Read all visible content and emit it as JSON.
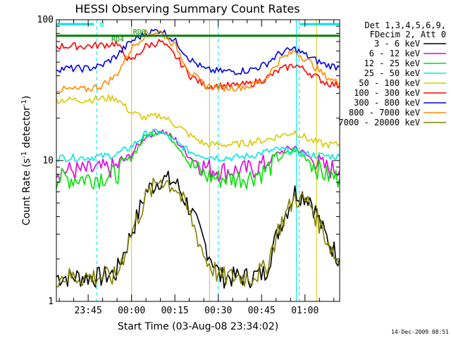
{
  "chart_data": {
    "type": "line",
    "title": "HESSI Observing Summary Count Rates",
    "xlabel": "Start Time (03-Aug-08 23:34:02)",
    "ylabel": "Count Rate (s",
    "ylabel_sup": "-1",
    "ylabel_tail": " detector",
    "ylabel_tail_sup": "-1",
    "ylabel_close": ")",
    "yscale": "log",
    "ylim": [
      1,
      100
    ],
    "y_ticks": [
      "1",
      "10",
      "100"
    ],
    "x_tick_labels": [
      "23:45",
      "00:00",
      "00:15",
      "00:30",
      "00:45",
      "01:00"
    ],
    "x_tick_minutes": [
      11,
      26,
      41,
      56,
      71,
      86
    ],
    "x_range_minutes": [
      0,
      98
    ],
    "legend_header": [
      "Det 1,3,4,5,6,9,",
      "FDecim 2, Att 0"
    ],
    "series": [
      {
        "name": "3 - 6 keV",
        "color": "#000000",
        "values": [
          1.5,
          1.5,
          1.5,
          1.5,
          1.6,
          3.0,
          6.0,
          7.5,
          7.0,
          4.5,
          2.5,
          1.5,
          1.5,
          1.5,
          1.6,
          3.5,
          6.0,
          5.5,
          3.0,
          2.0
        ]
      },
      {
        "name": "6 - 12 keV",
        "color": "#e100e1",
        "values": [
          8.5,
          8.5,
          8.5,
          8.7,
          9.0,
          11.0,
          15.0,
          16.5,
          14.0,
          10.5,
          9.0,
          8.5,
          8.5,
          8.7,
          9.5,
          11.5,
          12.5,
          10.5,
          9.0,
          8.5
        ]
      },
      {
        "name": "12 - 25 keV",
        "color": "#00e100",
        "values": [
          7.5,
          7.5,
          7.5,
          7.7,
          8.0,
          10.5,
          15.0,
          16.5,
          13.5,
          9.5,
          7.8,
          7.5,
          7.5,
          7.7,
          8.5,
          10.5,
          12.0,
          10.0,
          8.0,
          7.5
        ]
      },
      {
        "name": "25 - 50 keV",
        "color": "#00e6e6",
        "values": [
          10.5,
          10.5,
          10.5,
          10.7,
          11.0,
          12.5,
          15.5,
          16.0,
          13.5,
          11.5,
          10.8,
          10.5,
          10.5,
          10.8,
          11.5,
          12.0,
          11.5,
          11.0,
          10.8,
          10.7
        ]
      },
      {
        "name": "50 - 100 keV",
        "color": "#dcc800",
        "values": [
          27,
          27,
          27,
          27.5,
          28,
          22,
          20,
          21,
          18,
          15,
          13,
          13,
          13,
          13.5,
          14,
          15,
          16,
          14,
          13,
          13
        ]
      },
      {
        "name": "100 - 300 keV",
        "color": "#ff0000",
        "values": [
          65,
          65,
          65,
          66,
          68,
          50,
          65,
          70,
          55,
          40,
          34,
          34,
          34,
          35,
          38,
          44,
          48,
          42,
          36,
          34
        ]
      },
      {
        "name": "300 - 800 keV",
        "color": "#0000e1",
        "values": [
          45,
          45,
          45,
          47,
          55,
          70,
          80,
          85,
          70,
          52,
          44,
          43,
          43,
          44,
          48,
          58,
          62,
          54,
          48,
          46
        ]
      },
      {
        "name": "800 - 7000 keV",
        "color": "#ff8c00",
        "values": [
          32,
          32,
          32,
          34,
          40,
          62,
          80,
          82,
          65,
          42,
          34,
          33,
          33,
          34,
          38,
          52,
          60,
          50,
          40,
          35
        ]
      },
      {
        "name": "7000 - 20000 keV",
        "color": "#808000",
        "values": [
          1.5,
          1.5,
          1.5,
          1.5,
          1.5,
          3.0,
          5.5,
          7.5,
          6.5,
          4.0,
          2.0,
          1.5,
          1.5,
          1.5,
          1.7,
          3.5,
          5.5,
          5.0,
          3.0,
          1.8
        ]
      }
    ],
    "flags": [
      {
        "label": "N",
        "color": "#00e6e6"
      },
      {
        "label": "RD0",
        "color": "#008000"
      },
      {
        "label": "RD4",
        "color": "#008000"
      }
    ],
    "grid": false,
    "legend_position": "right"
  },
  "footer_date": "14-Dec-2009 08:51",
  "colors": {
    "night": "#00e6e6",
    "saa": "#dcc800",
    "attenuator": "#008000"
  }
}
